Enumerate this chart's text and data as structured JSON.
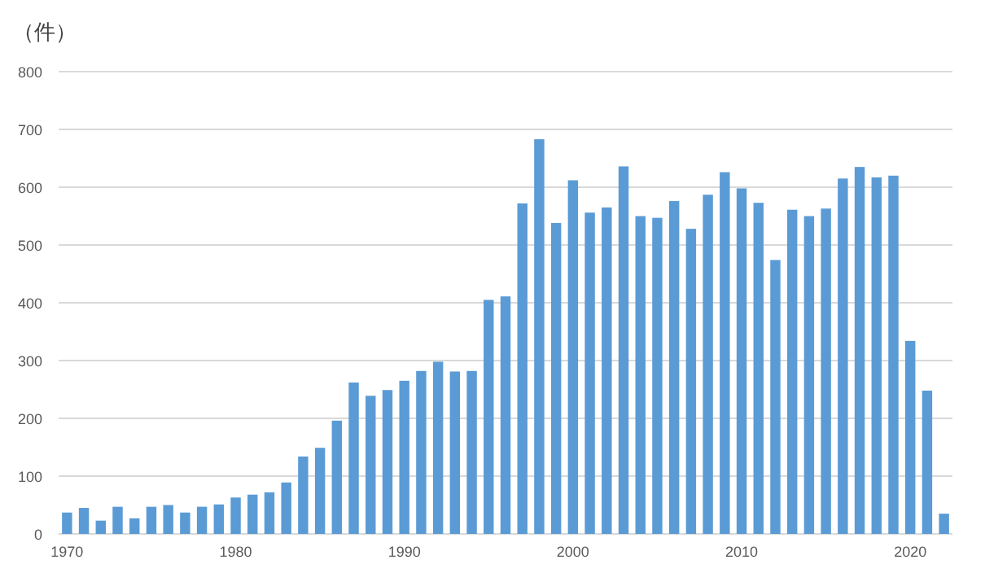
{
  "chart_data": {
    "type": "bar",
    "ylabel": "（件）",
    "categories": [
      "1970",
      null,
      null,
      null,
      null,
      null,
      null,
      null,
      null,
      null,
      "1980",
      null,
      null,
      null,
      null,
      null,
      null,
      null,
      null,
      null,
      "1990",
      null,
      null,
      null,
      null,
      null,
      null,
      null,
      null,
      null,
      "2000",
      null,
      null,
      null,
      null,
      null,
      null,
      null,
      null,
      null,
      "2010",
      null,
      null,
      null,
      null,
      null,
      null,
      null,
      null,
      null,
      "2020",
      null,
      null
    ],
    "values": [
      37,
      45,
      23,
      47,
      27,
      47,
      50,
      37,
      47,
      51,
      63,
      68,
      72,
      89,
      134,
      149,
      196,
      262,
      239,
      249,
      265,
      282,
      298,
      281,
      282,
      405,
      411,
      572,
      683,
      538,
      612,
      556,
      565,
      636,
      550,
      547,
      576,
      528,
      587,
      626,
      598,
      573,
      474,
      561,
      550,
      563,
      615,
      635,
      617,
      620,
      334,
      248,
      35
    ],
    "color": "#5b9bd5",
    "ylim": [
      0,
      800
    ],
    "yticks": [
      0,
      100,
      200,
      300,
      400,
      500,
      600,
      700,
      800
    ],
    "grid": "y"
  }
}
